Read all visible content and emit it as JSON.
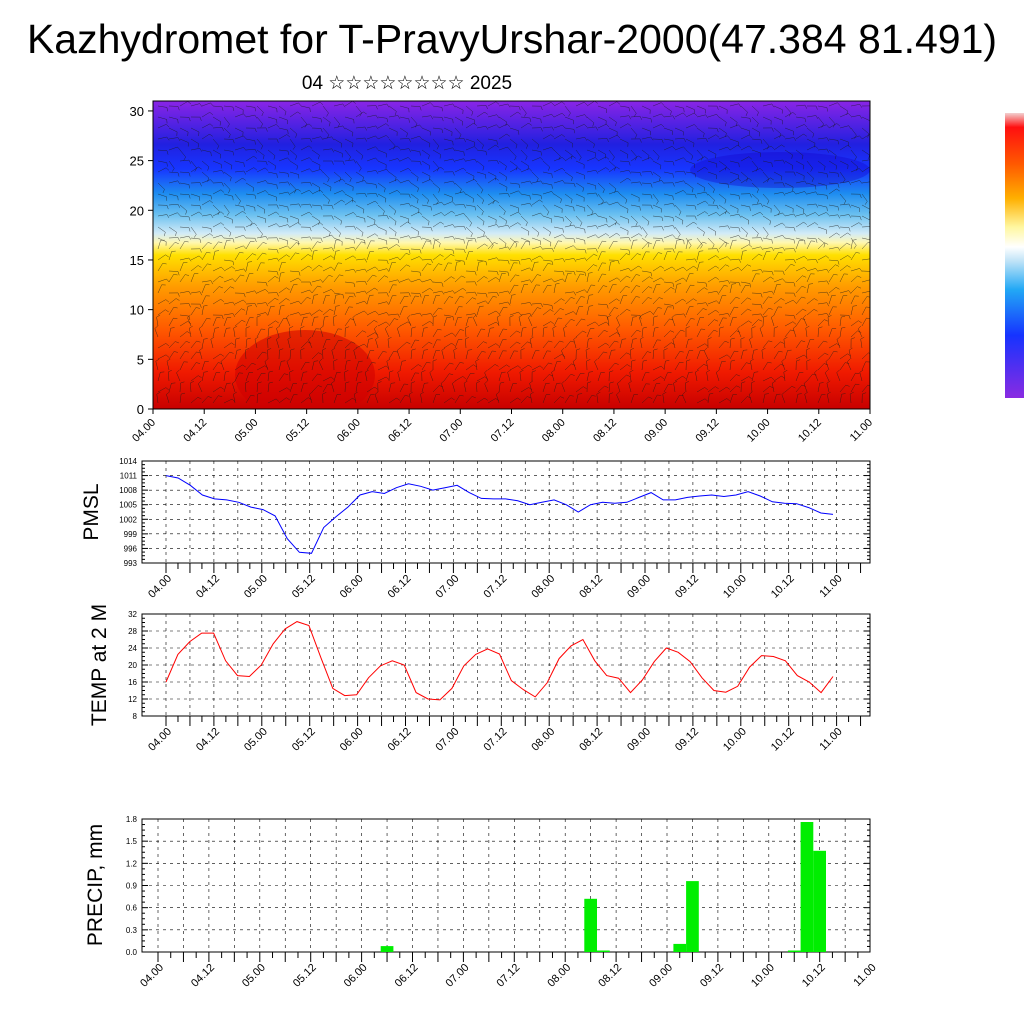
{
  "title": "Kazhydromet for T-PravyUrshar-2000(47.384 81.491)",
  "subtitle": "04 ☆☆☆☆☆☆☆☆ 2025",
  "time_ticks": [
    "04.00",
    "04.12",
    "05.00",
    "05.12",
    "06.00",
    "06.12",
    "07.00",
    "07.12",
    "08.00",
    "08.12",
    "09.00",
    "09.12",
    "10.00",
    "10.12",
    "11.00"
  ],
  "colors": {
    "pmsl_line": "#0000ff",
    "temp_line": "#ff0000",
    "precip_bar": "#00ee00",
    "colorbar": [
      "#f0c8c8",
      "#ff0000",
      "#ff6a00",
      "#ffcc00",
      "#fffb9c",
      "#cfe8f8",
      "#25a6f0",
      "#1e3cff",
      "#8a2be2"
    ]
  },
  "chart_data": [
    {
      "type": "heatmap",
      "title": "",
      "xlabel": "",
      "ylabel": "",
      "ylim": [
        0,
        31
      ],
      "yticks": [
        0,
        5,
        10,
        15,
        20,
        25,
        30
      ],
      "categories": [
        "04.00",
        "04.12",
        "05.00",
        "05.12",
        "06.00",
        "06.12",
        "07.00",
        "07.12",
        "08.00",
        "08.12",
        "09.00",
        "09.12",
        "10.00",
        "10.12",
        "11.00"
      ],
      "description_levels": "colour field warm (red) near surface to cold (purple) aloft with wind barbs overlay"
    },
    {
      "type": "line",
      "ylabel": "PMSL",
      "ylim": [
        993,
        1014
      ],
      "yticks": [
        993,
        996,
        999,
        1002,
        1005,
        1008,
        1011,
        1014
      ],
      "series": [
        {
          "values": [
            1011,
            1010.5,
            1009,
            1007,
            1006.2,
            1006,
            1005.5,
            1004.5,
            1004,
            1002.7,
            998,
            995.2,
            995,
            1000.3,
            1002.5,
            1004.5,
            1007,
            1007.7,
            1007.3,
            1008.5,
            1009.3,
            1008.8,
            1008,
            1008.5,
            1009,
            1007.5,
            1006.3,
            1006.2,
            1006.2,
            1005.8,
            1005,
            1005.5,
            1006,
            1005,
            1003.5,
            1005,
            1005.5,
            1005.3,
            1005.5,
            1006.5,
            1007.5,
            1006,
            1006,
            1006.5,
            1006.8,
            1007,
            1006.7,
            1007,
            1007.7,
            1006.8,
            1005.6,
            1005.3,
            1005.2,
            1004.4,
            1003.3,
            1003
          ]
        }
      ]
    },
    {
      "type": "line",
      "ylabel": "TEMP at 2 M",
      "ylim": [
        8,
        32
      ],
      "yticks": [
        8,
        12,
        16,
        20,
        24,
        28,
        32
      ],
      "series": [
        {
          "values": [
            16,
            22.5,
            25.5,
            27.5,
            27.5,
            21,
            17.5,
            17.3,
            20,
            25,
            28.5,
            30.2,
            29.3,
            21.8,
            14.5,
            12.8,
            13,
            17,
            19.8,
            21,
            20,
            13.5,
            12,
            11.8,
            14.5,
            19.8,
            22.5,
            23.8,
            22.6,
            16.3,
            14.2,
            12.5,
            15.8,
            21.5,
            24.5,
            26,
            21,
            17.5,
            16.9,
            13.5,
            16.5,
            20.8,
            24,
            23,
            20.8,
            17,
            14,
            13.6,
            15,
            19.5,
            22.2,
            22,
            21,
            17.5,
            16,
            13.5,
            17.3
          ]
        }
      ]
    },
    {
      "type": "bar",
      "ylabel": "PRECIP, mm",
      "ylim": [
        0,
        1.8
      ],
      "yticks": [
        "0.0",
        "0.3",
        "0.6",
        "0.9",
        "1.2",
        "1.5",
        "1.8"
      ],
      "x": [
        "06.06",
        "08.06",
        "08.09",
        "09.03",
        "09.06",
        "10.06",
        "10.09",
        "10.12"
      ],
      "values": [
        0.08,
        0.72,
        0.02,
        0.11,
        0.96,
        0.02,
        1.76,
        1.37
      ]
    }
  ]
}
